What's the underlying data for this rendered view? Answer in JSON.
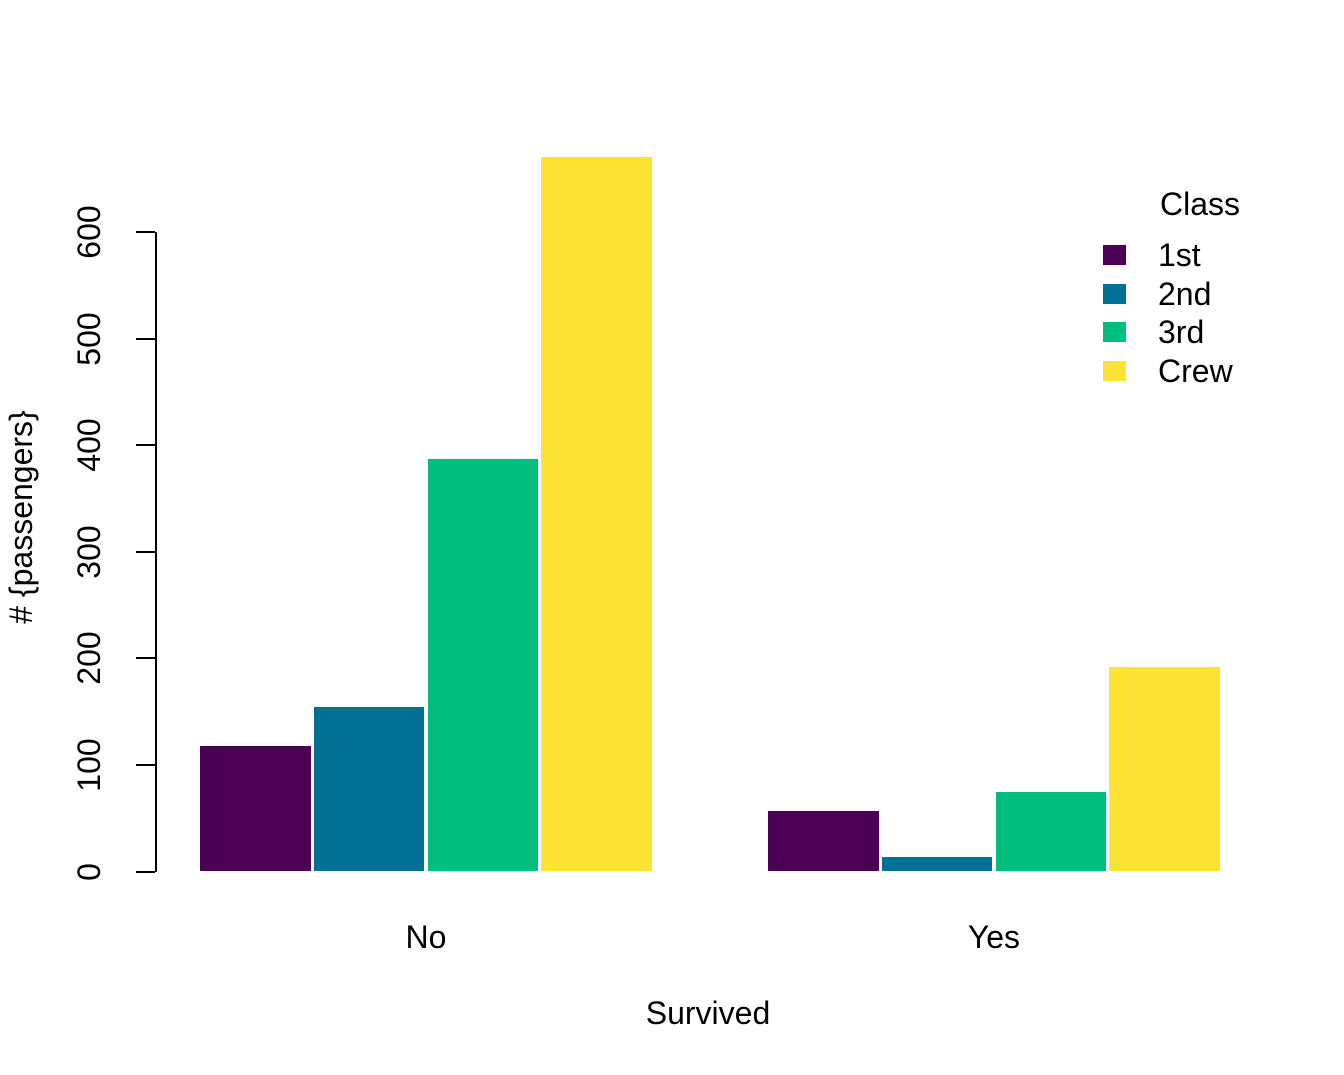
{
  "chart_data": {
    "type": "bar",
    "title": "",
    "xlabel": "Survived",
    "ylabel": "# {passengers}",
    "categories": [
      "No",
      "Yes"
    ],
    "series": [
      {
        "name": "1st",
        "color": "#4B0055",
        "values": [
          118,
          57
        ]
      },
      {
        "name": "2nd",
        "color": "#007094",
        "values": [
          154,
          14
        ]
      },
      {
        "name": "3rd",
        "color": "#00BE7D",
        "values": [
          387,
          75
        ]
      },
      {
        "name": "Crew",
        "color": "#FDE333",
        "values": [
          670,
          192
        ]
      }
    ],
    "legend": {
      "title": "Class",
      "position": "top-right"
    },
    "y_ticks": [
      0,
      100,
      200,
      300,
      400,
      500,
      600
    ],
    "ylim": [
      0,
      675
    ],
    "grid": false,
    "background_color": "#ffffff",
    "text_color": "#000000"
  }
}
